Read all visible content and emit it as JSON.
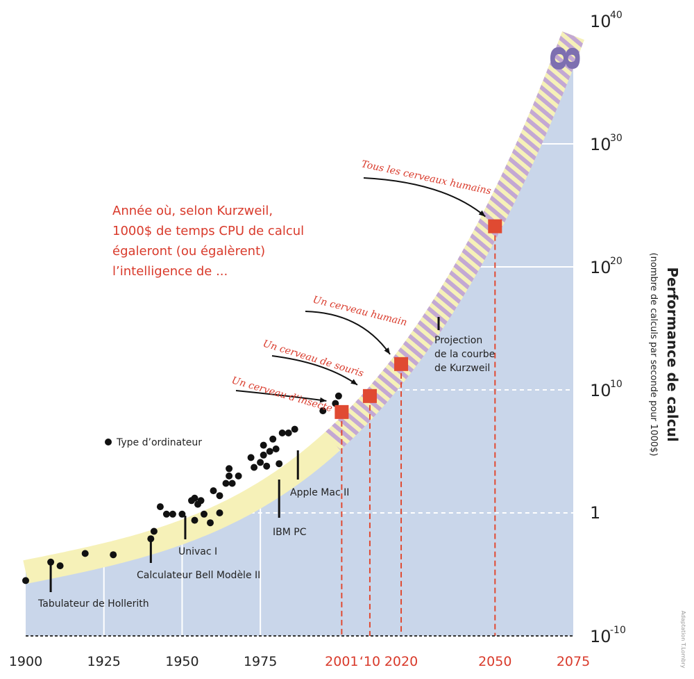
{
  "chart_data": {
    "type": "scatter",
    "title": "Année où, selon Kurzweil, 1000$ de temps CPU de calcul égaleront (ou égalèrent) l’intelligence de ...",
    "title_lines": [
      "Année où, selon Kurzweil,",
      "1000$ de temps CPU de calcul",
      "égaleront (ou égalèrent)",
      "l’intelligence de ..."
    ],
    "ylabel": "Performance de calcul",
    "ylabel_sub": "(nombre de calculs par seconde pour 1000$)",
    "xlim": [
      1900,
      2075
    ],
    "y_scale": "log10",
    "ylim_exponent": [
      -10,
      40
    ],
    "x_ticks": [
      {
        "year": 1900,
        "label": "1900",
        "red": false
      },
      {
        "year": 1925,
        "label": "1925",
        "red": false
      },
      {
        "year": 1950,
        "label": "1950",
        "red": false
      },
      {
        "year": 1975,
        "label": "1975",
        "red": false
      },
      {
        "year": 2001,
        "label": "2001",
        "red": true
      },
      {
        "year": 2010,
        "label": "‘10",
        "red": true
      },
      {
        "year": 2020,
        "label": "2020",
        "red": true
      },
      {
        "year": 2050,
        "label": "2050",
        "red": true
      },
      {
        "year": 2075,
        "label": "2075",
        "red": true
      }
    ],
    "y_ticks": [
      {
        "exp": 40,
        "base": "10",
        "sup": "40"
      },
      {
        "exp": 30,
        "base": "10",
        "sup": "30"
      },
      {
        "exp": 20,
        "base": "10",
        "sup": "20"
      },
      {
        "exp": 10,
        "base": "10",
        "sup": "10"
      },
      {
        "exp": 0,
        "base": "1",
        "sup": ""
      },
      {
        "exp": -10,
        "base": "10",
        "sup": "-10"
      }
    ],
    "legend": {
      "marker": "dot",
      "label": "Type d’ordinateur"
    },
    "computers": [
      {
        "x": 1900,
        "y": -5.5
      },
      {
        "x": 1908,
        "y": -4.0
      },
      {
        "x": 1911,
        "y": -4.3
      },
      {
        "x": 1919,
        "y": -3.3
      },
      {
        "x": 1928,
        "y": -3.4
      },
      {
        "x": 1940,
        "y": -2.1
      },
      {
        "x": 1941,
        "y": -1.5
      },
      {
        "x": 1943,
        "y": 0.5
      },
      {
        "x": 1945,
        "y": -0.1
      },
      {
        "x": 1947,
        "y": -0.1
      },
      {
        "x": 1950,
        "y": -0.1
      },
      {
        "x": 1953,
        "y": 1.0
      },
      {
        "x": 1954,
        "y": 1.2
      },
      {
        "x": 1954,
        "y": -0.6
      },
      {
        "x": 1955,
        "y": 0.7
      },
      {
        "x": 1956,
        "y": 1.0
      },
      {
        "x": 1957,
        "y": -0.1
      },
      {
        "x": 1959,
        "y": -0.8
      },
      {
        "x": 1960,
        "y": 1.8
      },
      {
        "x": 1962,
        "y": 0.0
      },
      {
        "x": 1962,
        "y": 1.4
      },
      {
        "x": 1964,
        "y": 2.4
      },
      {
        "x": 1965,
        "y": 3.0
      },
      {
        "x": 1965,
        "y": 3.6
      },
      {
        "x": 1966,
        "y": 2.4
      },
      {
        "x": 1968,
        "y": 3.0
      },
      {
        "x": 1972,
        "y": 4.5
      },
      {
        "x": 1973,
        "y": 3.7
      },
      {
        "x": 1975,
        "y": 4.1
      },
      {
        "x": 1976,
        "y": 5.5
      },
      {
        "x": 1976,
        "y": 4.7
      },
      {
        "x": 1977,
        "y": 3.8
      },
      {
        "x": 1978,
        "y": 5.0
      },
      {
        "x": 1979,
        "y": 6.0
      },
      {
        "x": 1980,
        "y": 5.2
      },
      {
        "x": 1981,
        "y": 4.0
      },
      {
        "x": 1982,
        "y": 6.5
      },
      {
        "x": 1984,
        "y": 6.5
      },
      {
        "x": 1986,
        "y": 6.8
      },
      {
        "x": 1995,
        "y": 8.3
      },
      {
        "x": 1999,
        "y": 8.9
      },
      {
        "x": 2000,
        "y": 9.5
      }
    ],
    "milestones": [
      {
        "year": 2001,
        "y": 8.2,
        "label": "Un cerveau d’insecte"
      },
      {
        "year": 2010,
        "y": 9.5,
        "label": "Un cerveau de souris"
      },
      {
        "year": 2020,
        "y": 12.1,
        "label": "Un cerveau humain"
      },
      {
        "year": 2050,
        "y": 23.3,
        "label": "Tous les cerveaux humains"
      }
    ],
    "annotations": [
      {
        "text": "Tabulateur de Hollerith",
        "year": 1908
      },
      {
        "text": "Calculateur Bell Modèle II",
        "year": 1940
      },
      {
        "text": "Univac I",
        "year": 1951
      },
      {
        "text": "IBM PC",
        "year": 1981
      },
      {
        "text": "Apple Mac II",
        "year": 1987
      }
    ],
    "projection_lines": [
      "Projection",
      "de la courbe",
      "de Kurzweil"
    ],
    "infinity_symbol": "8",
    "credit": "Adaptation T.Lombry",
    "colors": {
      "area": "#c9d6ea",
      "band": "#f6f1b8",
      "stripes": "#c3a8d3",
      "milestone": "#e04a32",
      "red_text": "#d93a2b",
      "dots": "#111111"
    }
  }
}
